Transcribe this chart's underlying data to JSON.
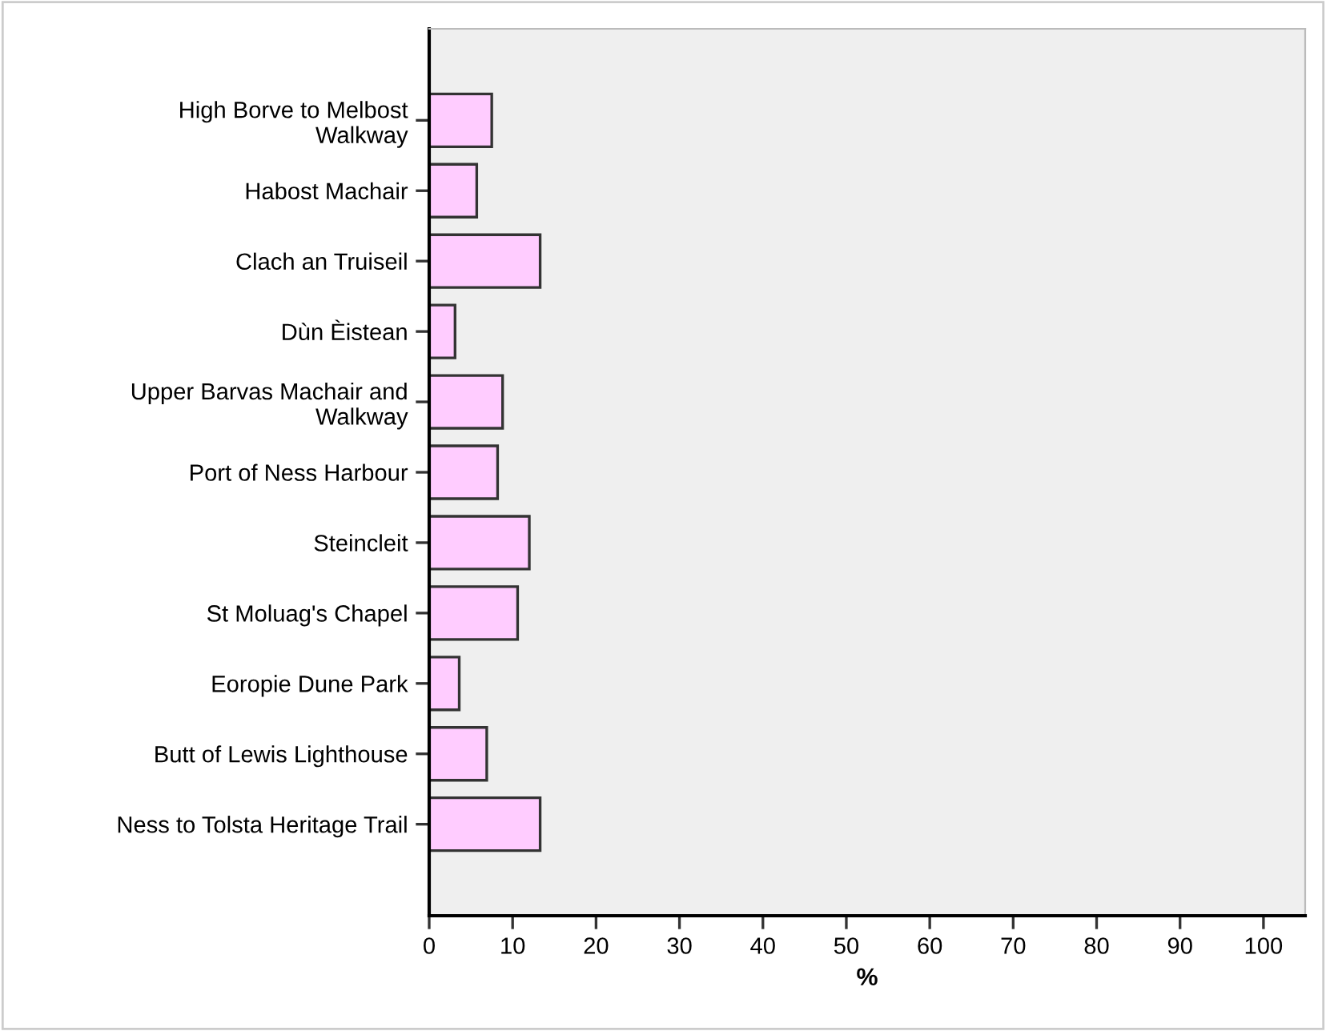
{
  "chart_data": {
    "type": "bar",
    "orientation": "horizontal",
    "xlabel": "%",
    "categories": [
      "High Borve to Melbost\nWalkway",
      "Habost Machair",
      "Clach an Truiseil",
      "Dùn Èistean",
      "Upper Barvas Machair and\nWalkway",
      "Port of Ness Harbour",
      "Steincleit",
      "St Moluag's Chapel",
      "Eoropie Dune Park",
      "Butt of Lewis Lighthouse",
      "Ness to Tolsta Heritage Trail"
    ],
    "values": [
      7.5,
      5.7,
      13.3,
      3.1,
      8.8,
      8.2,
      12.0,
      10.6,
      3.6,
      6.9,
      13.3
    ],
    "color": "#ffccff",
    "xlim": [
      0,
      105
    ],
    "xticks": [
      0,
      10,
      20,
      30,
      40,
      50,
      60,
      70,
      80,
      90,
      100
    ],
    "grid": false,
    "legend": false
  }
}
